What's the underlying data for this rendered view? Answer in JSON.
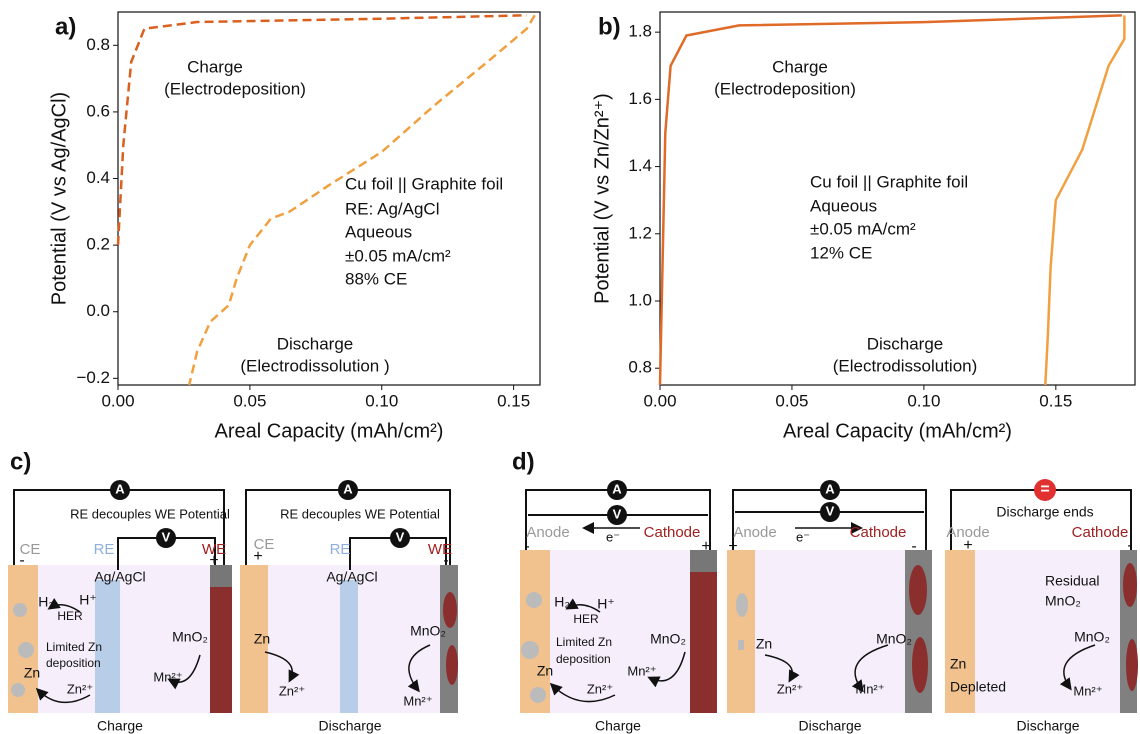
{
  "panel_labels": [
    "a)",
    "b)",
    "c)",
    "d)"
  ],
  "chart_data": [
    {
      "type": "line",
      "xlabel": "Areal Capacity (mAh/cm²)",
      "ylabel": "Potential (V vs Ag/AgCl)",
      "xlim": [
        0,
        0.16
      ],
      "ylim": [
        -0.22,
        0.9
      ],
      "xticks": [
        {
          "value": 0,
          "label": "0.00"
        },
        0.05,
        {
          "value": 0.1,
          "label": "0.10"
        },
        0.15
      ],
      "yticks": [
        {
          "value": -0.2,
          "label": "−0.2"
        },
        {
          "value": 0,
          "label": "0.0"
        },
        0.2,
        0.4,
        0.6,
        0.8
      ],
      "annotations": [
        "Charge",
        "(Electrodeposition)",
        "Cu foil || Graphite foil",
        "RE: Ag/AgCl",
        "Aqueous",
        "±0.05 mA/cm²",
        "88% CE",
        "Discharge",
        "(Electrodissolution )"
      ],
      "series": [
        {
          "name": "Charge",
          "color": "#d9601e",
          "line_style": "dashed",
          "x": [
            0,
            0.002,
            0.005,
            0.01,
            0.03,
            0.1,
            0.155
          ],
          "values": [
            0.2,
            0.5,
            0.75,
            0.85,
            0.87,
            0.88,
            0.89
          ]
        },
        {
          "name": "Discharge",
          "color": "#f0a040",
          "line_style": "dashed",
          "x": [
            0.158,
            0.155,
            0.14,
            0.12,
            0.1,
            0.08,
            0.065,
            0.058,
            0.05,
            0.045,
            0.042,
            0.035,
            0.03,
            0.027
          ],
          "values": [
            0.89,
            0.85,
            0.75,
            0.62,
            0.48,
            0.38,
            0.3,
            0.28,
            0.2,
            0.1,
            0.02,
            -0.03,
            -0.12,
            -0.22
          ]
        }
      ]
    },
    {
      "type": "line",
      "xlabel": "Areal Capacity (mAh/cm²)",
      "ylabel": "Potential (V vs Zn/Zn²⁺)",
      "xlim": [
        0,
        0.18
      ],
      "ylim": [
        0.75,
        1.86
      ],
      "xticks": [
        {
          "value": 0,
          "label": "0.00"
        },
        0.05,
        {
          "value": 0.1,
          "label": "0.10"
        },
        0.15
      ],
      "yticks": [
        0.8,
        {
          "value": 1,
          "label": "1.0"
        },
        1.2,
        1.4,
        1.6,
        1.8
      ],
      "annotations": [
        "Charge",
        "(Electrodeposition)",
        "Cu foil || Graphite foil",
        "Aqueous",
        "±0.05 mA/cm²",
        "12% CE",
        "Discharge",
        "(Electrodissolution)"
      ],
      "series": [
        {
          "name": "Charge",
          "color": "#e06a28",
          "line_style": "solid",
          "x": [
            0,
            0.002,
            0.004,
            0.01,
            0.03,
            0.1,
            0.175
          ],
          "values": [
            0.75,
            1.5,
            1.7,
            1.79,
            1.82,
            1.83,
            1.85
          ]
        },
        {
          "name": "Discharge",
          "color": "#f0a040",
          "line_style": "solid",
          "x": [
            0.176,
            0.176,
            0.17,
            0.16,
            0.15,
            0.148,
            0.147,
            0.146
          ],
          "values": [
            1.85,
            1.78,
            1.7,
            1.45,
            1.3,
            1.1,
            0.9,
            0.75
          ]
        }
      ]
    }
  ],
  "diagram_c": [
    {
      "ammeter": "A",
      "note": "RE decouples WE Potential",
      "voltmeter": "V",
      "ce": "CE",
      "re": "RE",
      "we": "WE",
      "sign_left": "-",
      "sign_right": "+",
      "reference": "Ag/AgCl",
      "h2": "H₂",
      "hplus": "H⁺",
      "her": "HER",
      "limited": "Limited Zn",
      "deposition": "deposition",
      "zn": "Zn",
      "zn_ion": "Zn²⁺",
      "mno2": "MnO₂",
      "mn_ion": "Mn²⁺",
      "caption": "Charge"
    },
    {
      "ammeter": "A",
      "note": "RE decouples WE Potential",
      "voltmeter": "V",
      "ce": "CE",
      "re": "RE",
      "we": "WE",
      "sign_left": "+",
      "sign_right": "-",
      "reference": "Ag/AgCl",
      "zn": "Zn",
      "zn_ion": "Zn²⁺",
      "mno2": "MnO₂",
      "mn_ion": "Mn²⁺",
      "caption": "Discharge"
    }
  ],
  "diagram_d": [
    {
      "ammeter": "A",
      "voltmeter": "V",
      "anode": "Anode",
      "electron": "e⁻",
      "cathode": "Cathode",
      "sign_left": "-",
      "sign_right": "+",
      "h2": "H₂",
      "hplus": "H⁺",
      "her": "HER",
      "limited": "Limited Zn",
      "deposition": "deposition",
      "zn": "Zn",
      "zn_ion": "Zn²⁺",
      "mno2": "MnO₂",
      "mn_ion": "Mn²⁺",
      "caption": "Charge"
    },
    {
      "ammeter": "A",
      "voltmeter": "V",
      "anode": "Anode",
      "electron": "e⁻",
      "cathode": "Cathode",
      "sign_left": "+",
      "sign_right": "-",
      "zn": "Zn",
      "zn_ion": "Zn²⁺",
      "mno2": "MnO₂",
      "mn_ion": "Mn²⁺",
      "caption": "Discharge"
    },
    {
      "icon": "=",
      "note": "Discharge ends",
      "anode": "Anode",
      "cathode": "Cathode",
      "sign_left": "+",
      "sign_right": "-",
      "residual": "Residual",
      "residual_mno2": "MnO₂",
      "zn": "Zn",
      "depleted": "Depleted",
      "mno2": "MnO₂",
      "mn_ion": "Mn²⁺",
      "caption": "Discharge"
    }
  ]
}
